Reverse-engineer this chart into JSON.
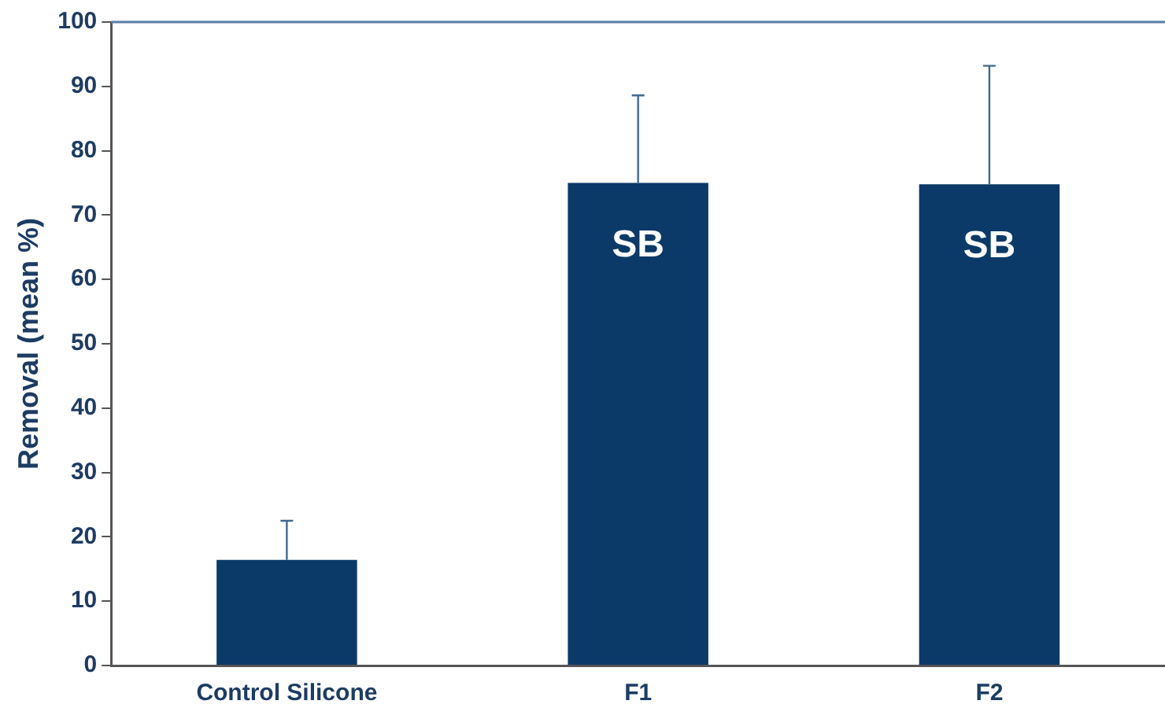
{
  "chart_data": {
    "type": "bar",
    "ylabel": "Removal (mean %)",
    "categories": [
      "Control Silicone",
      "F1",
      "F2"
    ],
    "values": [
      16.4,
      75.0,
      74.8
    ],
    "color": "#0b3a68",
    "errors": [
      [
        16.4,
        22.5
      ],
      [
        75.0,
        88.6
      ],
      [
        74.8,
        93.2
      ]
    ],
    "value_labels": [
      null,
      "SB",
      "SB"
    ],
    "ylim": [
      0,
      100
    ],
    "yticks": [
      0,
      10,
      20,
      30,
      40,
      50,
      60,
      70,
      80,
      90,
      100
    ],
    "grid": false
  }
}
